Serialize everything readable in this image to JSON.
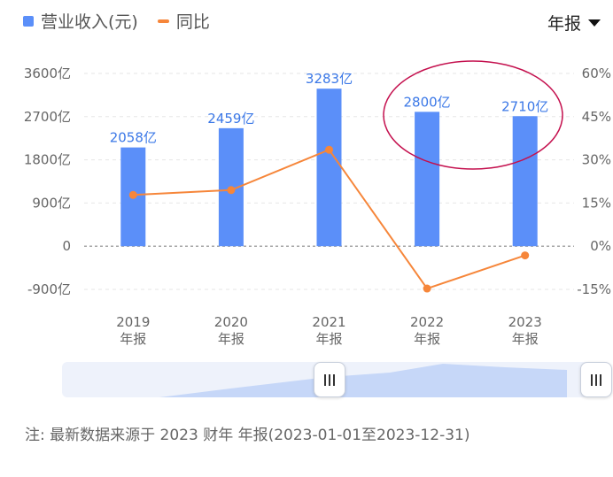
{
  "legend": {
    "bar_label": "营业收入(元)",
    "line_label": "同比"
  },
  "period_select": {
    "value": "年报"
  },
  "chart_data": {
    "type": "bar",
    "categories": [
      "2019",
      "2020",
      "2021",
      "2022",
      "2023"
    ],
    "category_sublabel": "年报",
    "left_ticks": [
      "3600亿",
      "2700亿",
      "1800亿",
      "900亿",
      "0",
      "-900亿"
    ],
    "right_ticks": [
      "60%",
      "45%",
      "30%",
      "15%",
      "0%",
      "-15%"
    ],
    "ylim": [
      -900,
      3600
    ],
    "ylim_right": [
      -15,
      60
    ],
    "ylabel_unit": "亿",
    "series": [
      {
        "name": "营业收入(元)",
        "type": "bar",
        "axis": "left",
        "color": "#5b8ff9",
        "values": [
          2058,
          2459,
          3283,
          2800,
          2710
        ],
        "labels": [
          "2058亿",
          "2459亿",
          "3283亿",
          "2800亿",
          "2710亿"
        ]
      },
      {
        "name": "同比",
        "type": "line",
        "axis": "right",
        "color": "#f6863a",
        "values": [
          17.8,
          19.5,
          33.5,
          -14.7,
          -3.2
        ]
      }
    ],
    "highlight": {
      "categories": [
        "2022",
        "2023"
      ],
      "shape": "ellipse",
      "color": "#c4104e"
    },
    "grid": "dashed horizontal",
    "legend_position": "top-left"
  },
  "footnote": "注: 最新数据来源于 2023 财年 年报(2023-01-01至2023-12-31)"
}
